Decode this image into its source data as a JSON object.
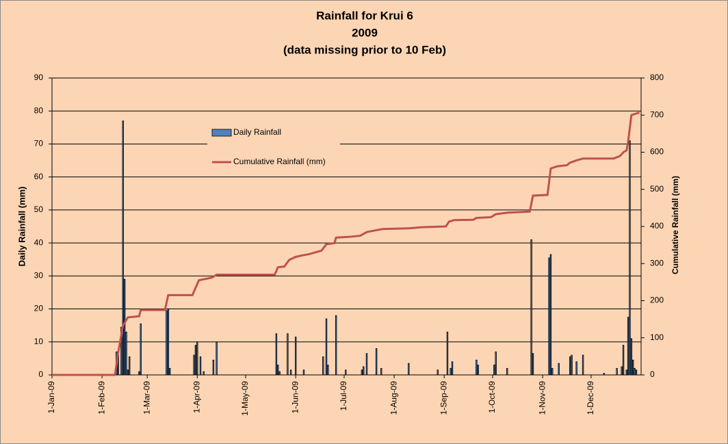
{
  "chart_data": {
    "type": "bar-line",
    "title": [
      "Rainfall for  Krui 6",
      "2009",
      "(data missing prior to 10 Feb)"
    ],
    "y_label": "Daily Rainfall (mm)",
    "y2_label": "Cumulative Rainfall (mm)",
    "xlim": [
      1,
      366
    ],
    "xticks": [
      {
        "value": 1,
        "label": "1-Jan-09"
      },
      {
        "value": 32,
        "label": "1-Feb-09"
      },
      {
        "value": 60,
        "label": "1-Mar-09"
      },
      {
        "value": 91,
        "label": "1-Apr-09"
      },
      {
        "value": 121,
        "label": "1-May-09"
      },
      {
        "value": 152,
        "label": "1-Jun-09"
      },
      {
        "value": 182,
        "label": "1-Jul-09"
      },
      {
        "value": 213,
        "label": "1-Aug-09"
      },
      {
        "value": 244,
        "label": "1-Sep-09"
      },
      {
        "value": 274,
        "label": "1-Oct-09"
      },
      {
        "value": 305,
        "label": "1-Nov-09"
      },
      {
        "value": 335,
        "label": "1-Dec-09"
      }
    ],
    "ylim": [
      0,
      90
    ],
    "yticks": [
      0,
      10,
      20,
      30,
      40,
      50,
      60,
      70,
      80,
      90
    ],
    "y2lim": [
      0,
      800
    ],
    "y2ticks": [
      0,
      100,
      200,
      300,
      400,
      500,
      600,
      700,
      800
    ],
    "grid": true,
    "series": [
      {
        "name": "Daily Rainfall",
        "type": "bar",
        "color": "#4f81bd",
        "x": [
          41,
          42,
          44,
          45,
          46,
          47,
          48,
          49,
          55,
          56,
          72,
          73,
          74,
          89,
          90,
          91,
          93,
          95,
          101,
          103,
          140,
          141,
          142,
          147,
          149,
          152,
          157,
          169,
          171,
          172,
          177,
          183,
          193,
          194,
          196,
          202,
          205,
          222,
          240,
          246,
          248,
          249,
          264,
          265,
          275,
          276,
          283,
          298,
          299,
          309,
          310,
          311,
          315,
          322,
          323,
          326,
          330,
          343,
          351,
          354,
          355,
          357,
          358,
          359,
          360,
          361,
          362,
          363
        ],
        "values": [
          7,
          6,
          14.5,
          77,
          29,
          13,
          1.5,
          5.5,
          1,
          15.5,
          19.5,
          20,
          2,
          6,
          9,
          10,
          5.5,
          1,
          4.5,
          10,
          12.5,
          3,
          1,
          12.5,
          1.5,
          11.5,
          1.5,
          5.5,
          17,
          3,
          18,
          1.5,
          1.5,
          2.5,
          6.5,
          8,
          2,
          3.5,
          1.5,
          13,
          2,
          4,
          4.5,
          3,
          3,
          7,
          2,
          41,
          6.5,
          35.5,
          36.5,
          2,
          3.5,
          5.5,
          6,
          4,
          6,
          0.5,
          2,
          2.5,
          9,
          1.5,
          17.5,
          71,
          11,
          4.5,
          2,
          1.5
        ]
      },
      {
        "name": "Cumulative Rainfall (mm)",
        "type": "line",
        "axis": "y2",
        "color": "#c0504d",
        "x": [
          1,
          40,
          42,
          45,
          48,
          55,
          56,
          71,
          73,
          88,
          92,
          100,
          103,
          139,
          141,
          145,
          148,
          152,
          156,
          160,
          168,
          171,
          176,
          177,
          185,
          192,
          196,
          202,
          206,
          222,
          230,
          245,
          247,
          250,
          262,
          264,
          273,
          276,
          283,
          297,
          299,
          308,
          310,
          314,
          320,
          322,
          326,
          330,
          349,
          353,
          355,
          357,
          358,
          360,
          365
        ],
        "values": [
          0,
          0,
          60,
          133,
          155,
          158,
          175,
          175,
          215,
          215,
          255,
          262,
          270,
          270,
          290,
          292,
          310,
          318,
          322,
          325,
          335,
          352,
          355,
          370,
          372,
          375,
          385,
          390,
          393,
          395,
          398,
          400,
          413,
          417,
          418,
          423,
          425,
          433,
          437,
          440,
          483,
          485,
          556,
          562,
          565,
          572,
          578,
          583,
          583,
          590,
          600,
          605,
          630,
          700,
          707
        ]
      }
    ]
  }
}
